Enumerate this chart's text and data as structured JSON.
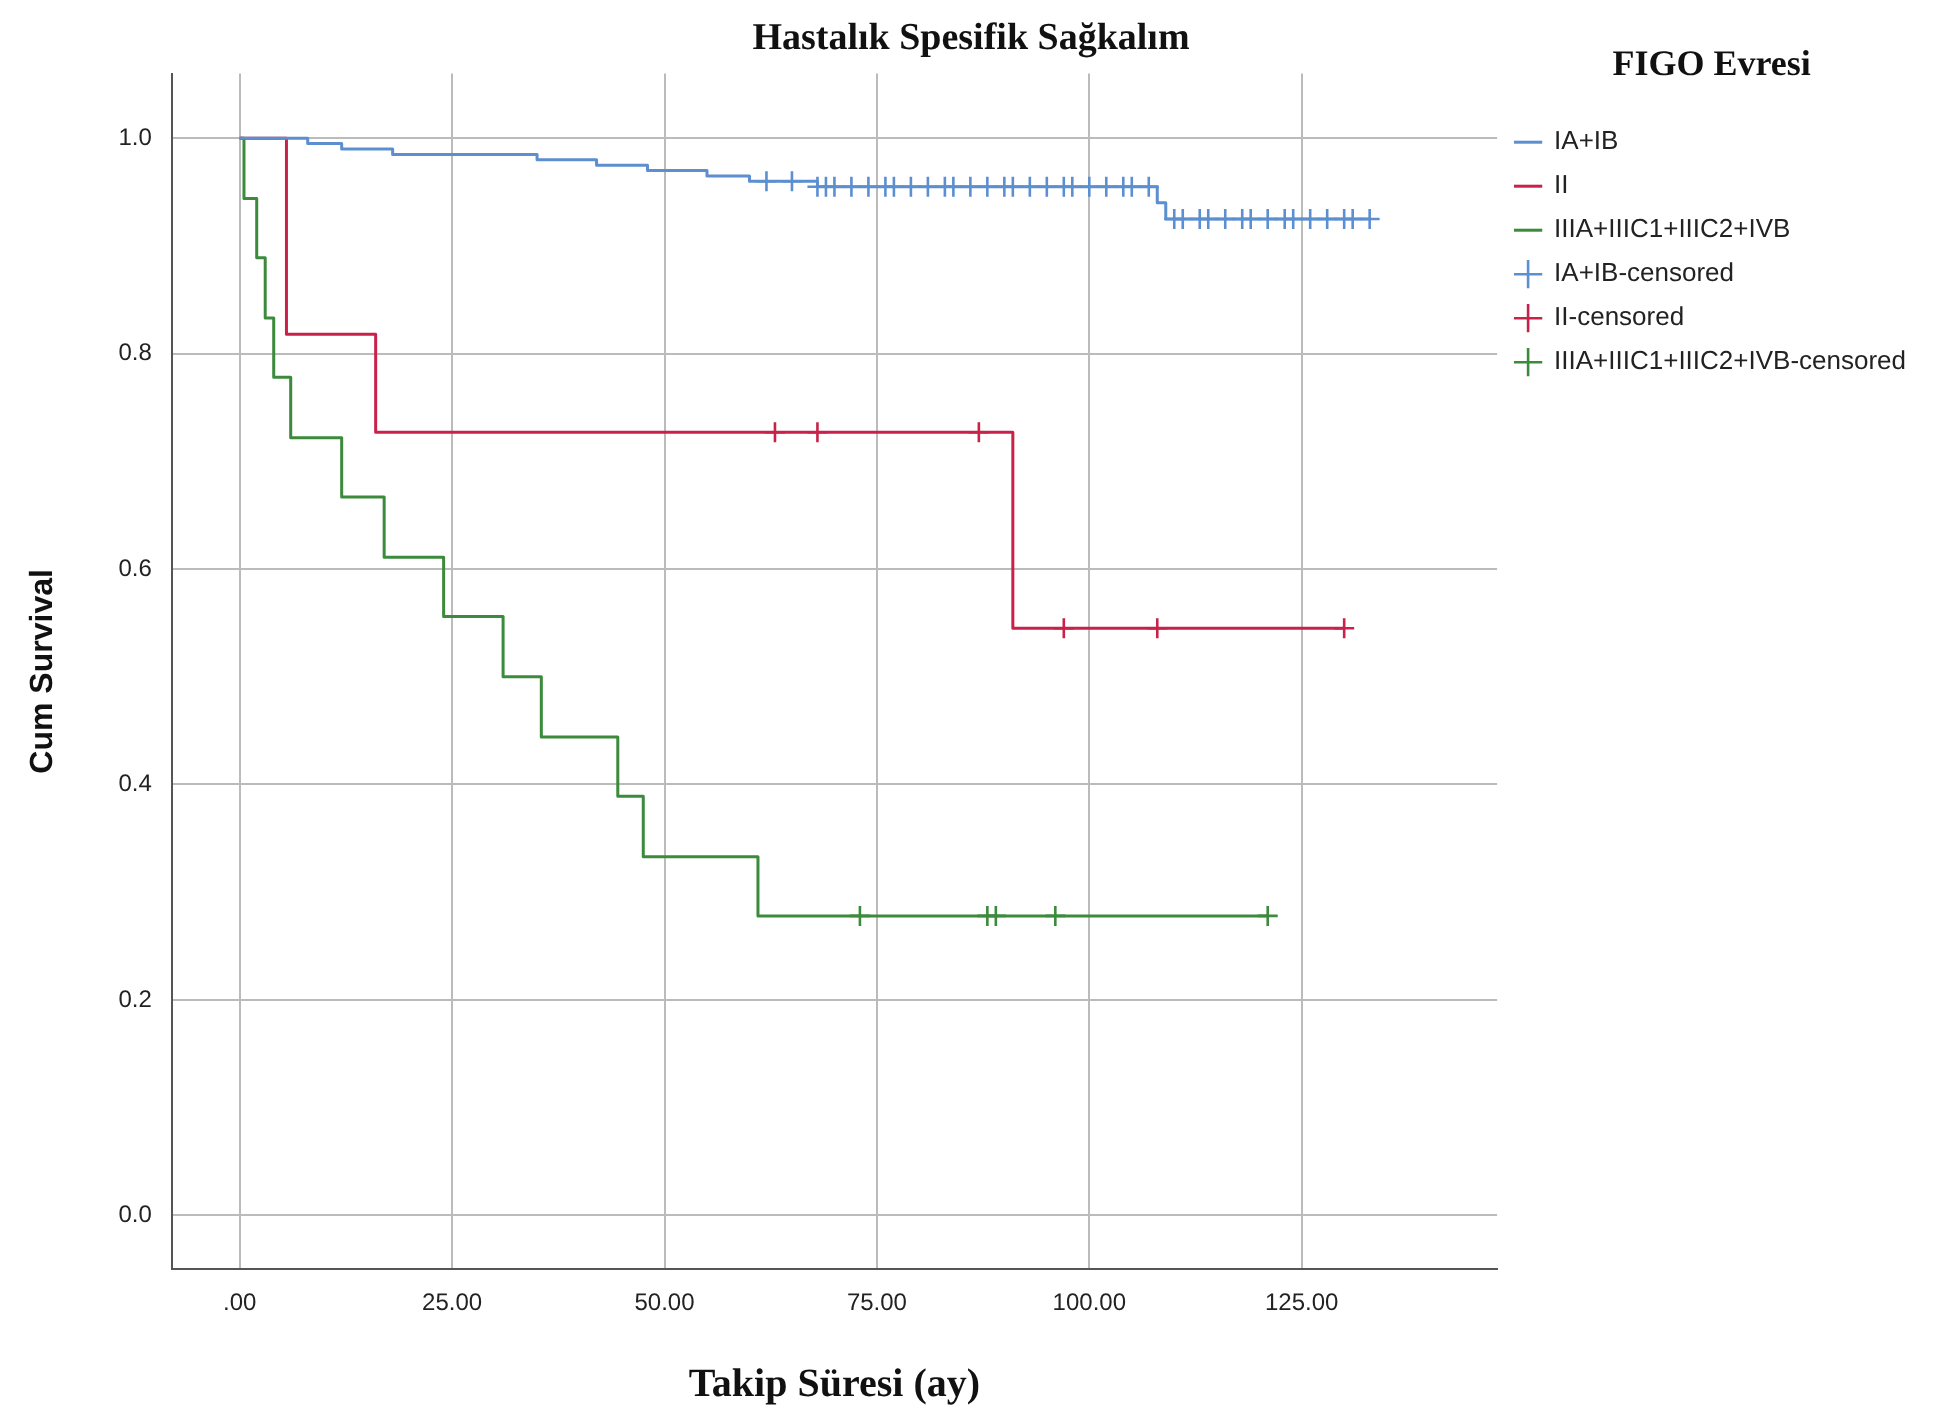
{
  "chart_data": {
    "type": "step",
    "title": "Hastalık Spesifik Sağkalım",
    "xlabel": "Takip Süresi (ay)",
    "ylabel": "Cum Survival",
    "legend_title": "FIGO Evresi",
    "xlim": [
      -8,
      148
    ],
    "ylim": [
      -0.05,
      1.06
    ],
    "xticks": [
      {
        "value": 0,
        "label": ".00"
      },
      {
        "value": 25,
        "label": "25.00"
      },
      {
        "value": 50,
        "label": "50.00"
      },
      {
        "value": 75,
        "label": "75.00"
      },
      {
        "value": 100,
        "label": "100.00"
      },
      {
        "value": 125,
        "label": "125.00"
      }
    ],
    "yticks": [
      {
        "value": 0,
        "label": "0.0"
      },
      {
        "value": 0.2,
        "label": "0.2"
      },
      {
        "value": 0.4,
        "label": "0.4"
      },
      {
        "value": 0.6,
        "label": "0.6"
      },
      {
        "value": 0.8,
        "label": "0.8"
      },
      {
        "value": 1,
        "label": "1.0"
      }
    ],
    "grid": true,
    "legend": "right",
    "line_style": "solid",
    "series": [
      {
        "name": "IA+IB",
        "type": "step",
        "color": "#5b8fd0",
        "x": [
          0,
          8,
          12,
          18,
          35,
          42,
          48,
          55,
          60,
          68,
          108,
          109,
          133
        ],
        "values": [
          1.0,
          0.995,
          0.99,
          0.985,
          0.98,
          0.975,
          0.97,
          0.965,
          0.96,
          0.955,
          0.94,
          0.925,
          0.925
        ]
      },
      {
        "name": "II",
        "type": "step",
        "color": "#c8224a",
        "x": [
          0,
          5.5,
          16,
          91,
          130
        ],
        "values": [
          1.0,
          0.818,
          0.727,
          0.545,
          0.545
        ]
      },
      {
        "name": "IIIA+IIIC1+IIIC2+IVB",
        "type": "step",
        "color": "#3c8a3c",
        "x": [
          0,
          0.5,
          2,
          3,
          4,
          6,
          12,
          17,
          24,
          31,
          35.5,
          44.5,
          47.5,
          61,
          121
        ],
        "values": [
          1.0,
          0.944,
          0.889,
          0.833,
          0.778,
          0.722,
          0.667,
          0.611,
          0.556,
          0.5,
          0.444,
          0.389,
          0.333,
          0.278,
          0.278
        ]
      },
      {
        "name": "IA+IB-censored",
        "type": "scatter",
        "marker": "cross",
        "color": "#5b8fd0",
        "x": [
          62,
          65,
          68,
          69,
          70,
          72,
          74,
          76,
          77,
          79,
          81,
          83,
          84,
          86,
          88,
          90,
          91,
          93,
          95,
          97,
          98,
          100,
          102,
          104,
          105,
          107,
          110,
          111,
          113,
          114,
          116,
          118,
          119,
          121,
          123,
          124,
          126,
          128,
          130,
          131,
          133
        ],
        "values": [
          0.96,
          0.96,
          0.955,
          0.955,
          0.955,
          0.955,
          0.955,
          0.955,
          0.955,
          0.955,
          0.955,
          0.955,
          0.955,
          0.955,
          0.955,
          0.955,
          0.955,
          0.955,
          0.955,
          0.955,
          0.955,
          0.955,
          0.955,
          0.955,
          0.955,
          0.955,
          0.925,
          0.925,
          0.925,
          0.925,
          0.925,
          0.925,
          0.925,
          0.925,
          0.925,
          0.925,
          0.925,
          0.925,
          0.925,
          0.925,
          0.925
        ]
      },
      {
        "name": "II-censored",
        "type": "scatter",
        "marker": "cross",
        "color": "#c8224a",
        "x": [
          63,
          68,
          87,
          97,
          108,
          130
        ],
        "values": [
          0.727,
          0.727,
          0.727,
          0.545,
          0.545,
          0.545
        ]
      },
      {
        "name": "IIIA+IIIC1+IIIC2+IVB-censored",
        "type": "scatter",
        "marker": "cross",
        "color": "#3c8a3c",
        "x": [
          73,
          88,
          89,
          96,
          121
        ],
        "values": [
          0.278,
          0.278,
          0.278,
          0.278,
          0.278
        ]
      }
    ]
  }
}
